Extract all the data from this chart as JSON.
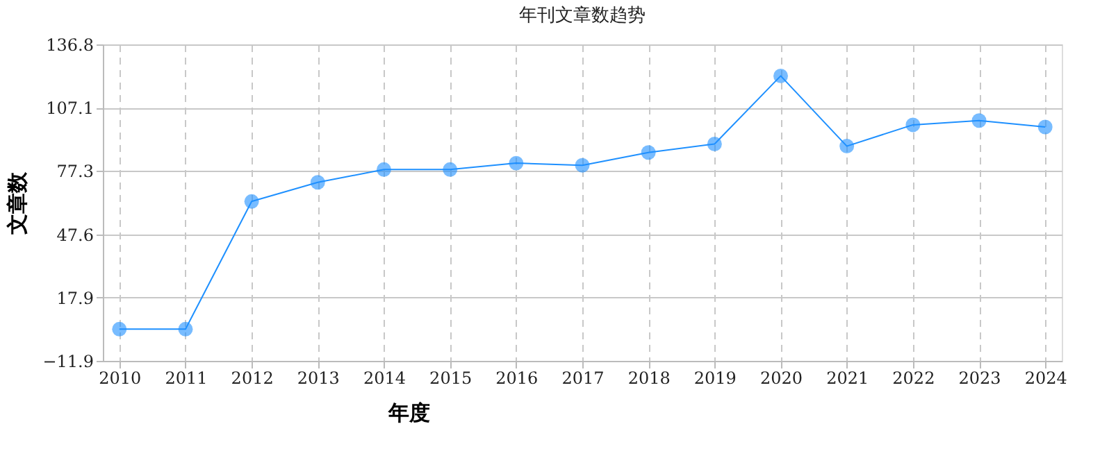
{
  "chart_data": {
    "type": "line",
    "title": "年刊文章数趋势",
    "xlabel": "年度",
    "ylabel": "文章数",
    "categories": [
      "2010",
      "2011",
      "2012",
      "2013",
      "2014",
      "2015",
      "2016",
      "2017",
      "2018",
      "2019",
      "2020",
      "2021",
      "2022",
      "2023",
      "2024"
    ],
    "series": [
      {
        "color": "#1e90ff",
        "values": [
          3,
          3,
          63,
          72,
          78,
          78,
          81,
          80,
          86,
          90,
          122,
          89,
          99,
          101,
          98
        ]
      }
    ],
    "ylim": [
      -11.9,
      136.8
    ],
    "yticks": [
      -11.9,
      17.9,
      47.6,
      77.3,
      107.1,
      136.8
    ],
    "grid": true,
    "marker": "circle",
    "line_style": "solid"
  }
}
